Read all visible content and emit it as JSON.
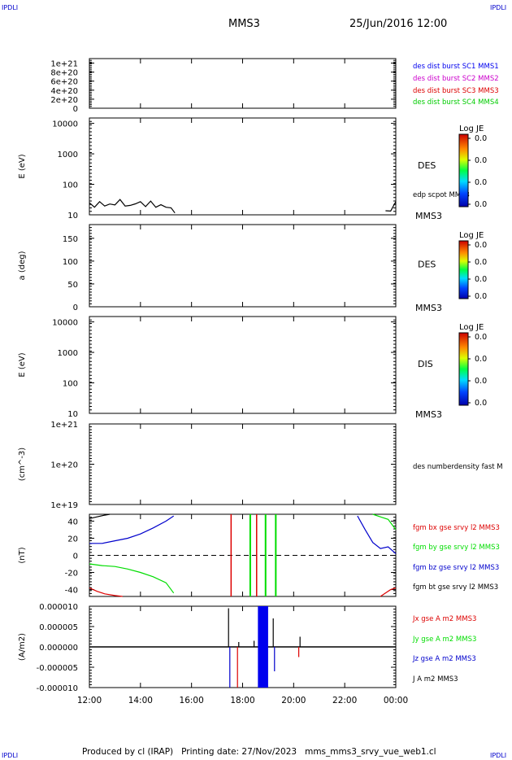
{
  "corner_marks": {
    "tl": "IPDLI",
    "tr": "IPDLI",
    "bl": "IPDLI",
    "br": "IPDLI"
  },
  "header": {
    "spacecraft": "MMS3",
    "date": "25/Jun/2016 12:00"
  },
  "footer": {
    "text": "Produced by cl (IRAP)   Printing date: 27/Nov/2023   mms_mms3_srvy_vue_web1.cl"
  },
  "colors": {
    "mms1": "#0000ee",
    "mms2": "#cc00cc",
    "mms3": "#dd0000",
    "mms4": "#00cc00",
    "bx": "#dd0000",
    "by": "#00dd00",
    "bz": "#0000cc",
    "bt": "#000000"
  },
  "chart_data": [
    {
      "type": "line",
      "panel": "des-dist-burst",
      "yticks": [
        "1e+21",
        "8e+20",
        "6e+20",
        "4e+20",
        "2e+20",
        "0"
      ],
      "ylim": [
        0,
        1.1e+21
      ],
      "dashed_zero": true,
      "legend": [
        {
          "text": "des dist burst SC1 MMS1",
          "color": "#0000ee"
        },
        {
          "text": "des dist burst SC2 MMS2",
          "color": "#cc00cc"
        },
        {
          "text": "des dist burst SC3 MMS3",
          "color": "#dd0000"
        },
        {
          "text": "des dist burst SC4 MMS4",
          "color": "#00cc00"
        }
      ]
    },
    {
      "type": "heatmap",
      "panel": "des-energy",
      "ylabel": "E (eV)",
      "yscale": "log",
      "yticks": [
        "10000",
        "1000",
        "100",
        "10"
      ],
      "ylim": [
        10,
        15000
      ],
      "label": "DES",
      "sc_label": "MMS3",
      "overlay_label": "edp scpot MMS3",
      "colorbar": {
        "title": "Log JE",
        "ticks": [
          "0.0",
          "0.0",
          "0.0",
          "0.0"
        ]
      },
      "scpot_series": {
        "x_hours": [
          12.0,
          12.2,
          12.4,
          12.6,
          12.8,
          13.0,
          13.2,
          13.4,
          13.6,
          13.8,
          14.0,
          14.2,
          14.4,
          14.6,
          14.8,
          15.0,
          15.2,
          15.35,
          23.6,
          23.8,
          24.0
        ],
        "y": [
          22,
          20,
          24,
          22,
          20,
          24,
          28,
          22,
          18,
          26,
          24,
          21,
          25,
          20,
          19,
          20,
          15,
          13,
          12,
          15,
          24
        ]
      }
    },
    {
      "type": "heatmap",
      "panel": "des-pitch",
      "ylabel": "a (deg)",
      "yticks": [
        "150",
        "100",
        "50",
        "0"
      ],
      "ylim": [
        0,
        180
      ],
      "label": "DES",
      "sc_label": "MMS3",
      "colorbar": {
        "title": "Log JE",
        "ticks": [
          "0.0",
          "0.0",
          "0.0",
          "0.0"
        ]
      }
    },
    {
      "type": "heatmap",
      "panel": "dis-energy",
      "ylabel": "E (eV)",
      "yscale": "log",
      "yticks": [
        "10000",
        "1000",
        "100",
        "10"
      ],
      "ylim": [
        10,
        15000
      ],
      "label": "DIS",
      "sc_label": "MMS3",
      "colorbar": {
        "title": "Log JE",
        "ticks": [
          "0.0",
          "0.0",
          "0.0",
          "0.0"
        ]
      }
    },
    {
      "type": "line",
      "panel": "des-density",
      "ylabel": "(cm^-3)",
      "yscale": "log",
      "yticks": [
        "1e+21",
        "1e+20",
        "1e+19"
      ],
      "ylim": [
        1e+19,
        1e+21
      ],
      "legend": [
        {
          "text": "des numberdensity fast M",
          "color": "#000000"
        }
      ]
    },
    {
      "type": "line",
      "panel": "fgm-b",
      "ylabel": "(nT)",
      "yticks": [
        "40",
        "20",
        "0",
        "-20",
        "-40"
      ],
      "ylim": [
        -48,
        48
      ],
      "dashed_zero": true,
      "legend": [
        {
          "text": "fgm bx gse srvy l2 MMS3",
          "color": "#dd0000"
        },
        {
          "text": "fgm by gse srvy l2 MMS3",
          "color": "#00dd00"
        },
        {
          "text": "fgm bz gse srvy l2 MMS3",
          "color": "#0000cc"
        },
        {
          "text": "fgm bt gse srvy l2 MMS3",
          "color": "#000000"
        }
      ],
      "series": [
        {
          "name": "fgm bz gse srvy l2 MMS3",
          "color": "#0000cc",
          "x_hours": [
            12.0,
            12.5,
            13.0,
            13.5,
            14.0,
            14.5,
            15.0,
            15.3,
            22.5,
            22.8,
            23.1,
            23.4,
            23.7,
            24.0
          ],
          "y": [
            14,
            14,
            17,
            20,
            25,
            32,
            40,
            46,
            46,
            30,
            15,
            8,
            10,
            2
          ],
          "break_after": 7
        },
        {
          "name": "fgm by gse srvy l2 MMS3",
          "color": "#00dd00",
          "x_hours": [
            12.0,
            12.5,
            13.0,
            13.5,
            14.0,
            14.5,
            15.0,
            15.3,
            23.1,
            23.4,
            23.7,
            24.0
          ],
          "y": [
            -10,
            -12,
            -13,
            -16,
            -20,
            -25,
            -32,
            -44,
            48,
            45,
            42,
            30
          ],
          "break_after": 7
        },
        {
          "name": "fgm bx gse srvy l2 MMS3",
          "color": "#dd0000",
          "x_hours": [
            12.0,
            12.3,
            12.6,
            13.0,
            13.3,
            23.4,
            23.6,
            23.8,
            24.0
          ],
          "y": [
            -38,
            -42,
            -45,
            -47,
            -48,
            -48,
            -44,
            -40,
            -38
          ],
          "break_after": 4
        },
        {
          "name": "fgm bt gse srvy l2 MMS3",
          "color": "#000000",
          "x_hours": [
            12.0,
            12.3,
            12.6,
            12.8
          ],
          "y": [
            43,
            45,
            47,
            48
          ]
        }
      ],
      "vertical_events": [
        {
          "x_hours": 17.55,
          "color": "#dd0000"
        },
        {
          "x_hours": 18.3,
          "color": "#00dd00"
        },
        {
          "x_hours": 18.55,
          "color": "#dd0000"
        },
        {
          "x_hours": 18.9,
          "color": "#00dd00"
        },
        {
          "x_hours": 19.3,
          "color": "#00dd00"
        }
      ]
    },
    {
      "type": "line",
      "panel": "j-curlometer",
      "ylabel": "(A/m2)",
      "yticks": [
        "0.000010",
        "0.000005",
        "0.000000",
        "-0.000005",
        "-0.000010"
      ],
      "ylim": [
        -1e-05,
        1e-05
      ],
      "legend": [
        {
          "text": "Jx gse A m2 MMS3",
          "color": "#dd0000"
        },
        {
          "text": "Jy gse A m2 MMS3",
          "color": "#00dd00"
        },
        {
          "text": "Jz gse A m2 MMS3",
          "color": "#0000cc"
        },
        {
          "text": "J A m2 MMS3",
          "color": "#000000"
        }
      ],
      "block": {
        "x_start_hours": 18.6,
        "x_end_hours": 19.0,
        "color": "#0000ee"
      },
      "spikes": [
        {
          "x_hours": 17.45,
          "y": 9.5e-06,
          "color": "#000000"
        },
        {
          "x_hours": 17.5,
          "y": -1e-05,
          "color": "#0000cc"
        },
        {
          "x_hours": 17.8,
          "y": -1e-05,
          "color": "#dd0000"
        },
        {
          "x_hours": 17.85,
          "y": 1.2e-06,
          "color": "#000000"
        },
        {
          "x_hours": 18.45,
          "y": 1.5e-06,
          "color": "#000000"
        },
        {
          "x_hours": 19.2,
          "y": 7e-06,
          "color": "#000000"
        },
        {
          "x_hours": 19.25,
          "y": -6e-06,
          "color": "#0000cc"
        },
        {
          "x_hours": 20.25,
          "y": 2.5e-06,
          "color": "#000000"
        },
        {
          "x_hours": 20.2,
          "y": -2.5e-06,
          "color": "#dd0000"
        }
      ]
    }
  ],
  "x_axis": {
    "ticks": [
      "12:00",
      "14:00",
      "16:00",
      "18:00",
      "20:00",
      "22:00",
      "00:00"
    ],
    "xlim_hours": [
      12,
      24
    ]
  }
}
